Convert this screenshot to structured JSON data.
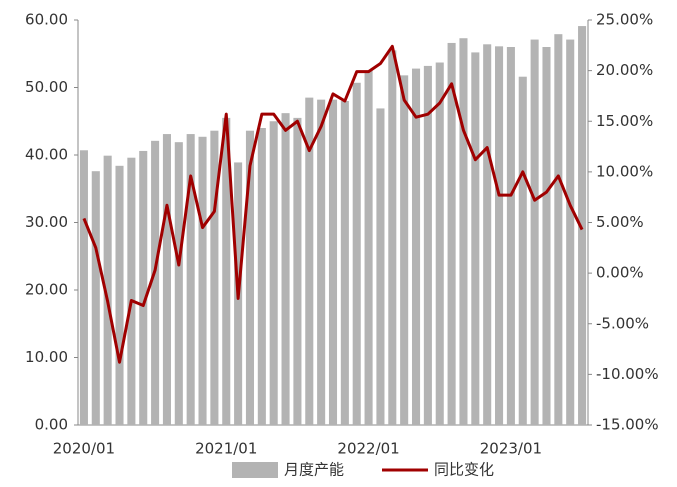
{
  "chart_data": {
    "type": "bar_line",
    "categories": [
      "2020/01",
      null,
      null,
      null,
      null,
      null,
      null,
      null,
      null,
      null,
      null,
      null,
      "2021/01",
      null,
      null,
      null,
      null,
      null,
      null,
      null,
      null,
      null,
      null,
      null,
      "2022/01",
      null,
      null,
      null,
      null,
      null,
      null,
      null,
      null,
      null,
      null,
      null,
      "2023/01",
      null,
      null,
      null,
      null,
      null,
      null
    ],
    "series": [
      {
        "name": "月度产能",
        "color": "#b3b3b3",
        "kind": "bar",
        "values": [
          40.7,
          37.6,
          39.9,
          38.4,
          39.6,
          40.6,
          42.1,
          43.1,
          41.9,
          43.1,
          42.7,
          43.6,
          45.5,
          38.9,
          43.6,
          44.0,
          45.0,
          46.2,
          45.5,
          48.5,
          48.2,
          48.2,
          48.0,
          50.7,
          52.5,
          46.9,
          55.5,
          51.8,
          52.8,
          53.2,
          53.7,
          56.6,
          57.3,
          55.2,
          56.4,
          56.1,
          56.0,
          51.6,
          57.1,
          56.0,
          57.9,
          57.1,
          59.1
        ]
      },
      {
        "name": "同比变化",
        "color": "#a00000",
        "kind": "line",
        "axis": "y2",
        "values": [
          5.4,
          2.5,
          -2.8,
          -8.8,
          -2.7,
          -3.2,
          0.3,
          6.7,
          0.8,
          9.6,
          4.5,
          6.1,
          15.7,
          -2.5,
          10.6,
          15.7,
          15.7,
          14.1,
          15.0,
          12.1,
          14.5,
          17.7,
          17.0,
          19.9,
          19.9,
          20.7,
          22.4,
          17.1,
          15.4,
          15.7,
          16.8,
          18.7,
          14.1,
          11.2,
          12.4,
          7.7,
          7.7,
          10.0,
          7.2,
          8.0,
          9.6,
          6.7,
          4.3
        ]
      }
    ],
    "ylim": [
      0,
      60
    ],
    "yticks": [
      {
        "value": 0,
        "label": "0.00"
      },
      {
        "value": 10,
        "label": "10.00"
      },
      {
        "value": 20,
        "label": "20.00"
      },
      {
        "value": 30,
        "label": "30.00"
      },
      {
        "value": 40,
        "label": "40.00"
      },
      {
        "value": 50,
        "label": "50.00"
      },
      {
        "value": 60,
        "label": "60.00"
      }
    ],
    "y2lim": [
      -15,
      25
    ],
    "y2ticks": [
      {
        "value": -15,
        "label": "-15.00%"
      },
      {
        "value": -10,
        "label": "-10.00%"
      },
      {
        "value": -5,
        "label": "-5.00%"
      },
      {
        "value": 0,
        "label": "0.00%"
      },
      {
        "value": 5,
        "label": "5.00%"
      },
      {
        "value": 10,
        "label": "10.00%"
      },
      {
        "value": 15,
        "label": "15.00%"
      },
      {
        "value": 20,
        "label": "20.00%"
      },
      {
        "value": 25,
        "label": "25.00%"
      }
    ],
    "legend": "bottom"
  }
}
